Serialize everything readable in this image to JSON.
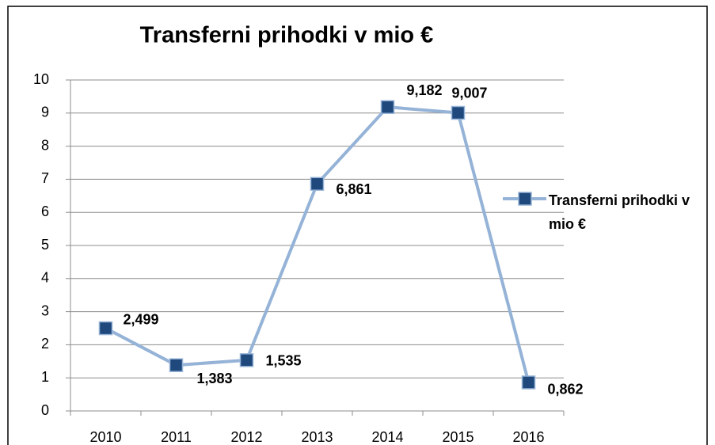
{
  "chart_data": {
    "type": "line",
    "title": "Transferni prihodki v mio €",
    "categories": [
      "2010",
      "2011",
      "2012",
      "2013",
      "2014",
      "2015",
      "2016"
    ],
    "series": [
      {
        "name": "Transferni prihodki v mio €",
        "color": "#95b3d7",
        "marker_color": "#1f497d",
        "values": [
          2.499,
          1.383,
          1.535,
          6.861,
          9.182,
          9.007,
          0.862
        ],
        "value_labels": [
          "2,499",
          "1,383",
          "1,535",
          "6,861",
          "9,182",
          "9,007",
          "0,862"
        ]
      }
    ],
    "ylim": [
      0,
      10
    ],
    "yticks": [
      0,
      1,
      2,
      3,
      4,
      5,
      6,
      7,
      8,
      9,
      10
    ],
    "grid": true,
    "legend": "right"
  }
}
